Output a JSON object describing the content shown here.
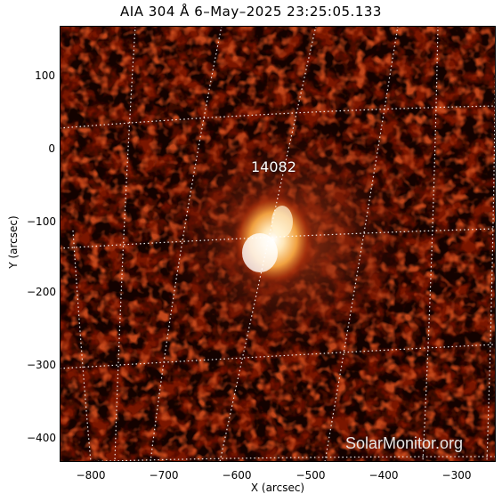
{
  "title": "AIA 304 Å  6–May–2025 23:25:05.133",
  "axes": {
    "xlabel": "X (arcsec)",
    "ylabel": "Y (arcsec)",
    "xticks": [
      "−800",
      "−700",
      "−600",
      "−500",
      "−400",
      "−300"
    ],
    "yticks": [
      "100",
      "0",
      "−100",
      "−200",
      "−300",
      "−400"
    ]
  },
  "image": {
    "description_colormap": "sdoaia304",
    "active_region_label": "14082"
  },
  "watermark": "SolarMonitor.org"
}
